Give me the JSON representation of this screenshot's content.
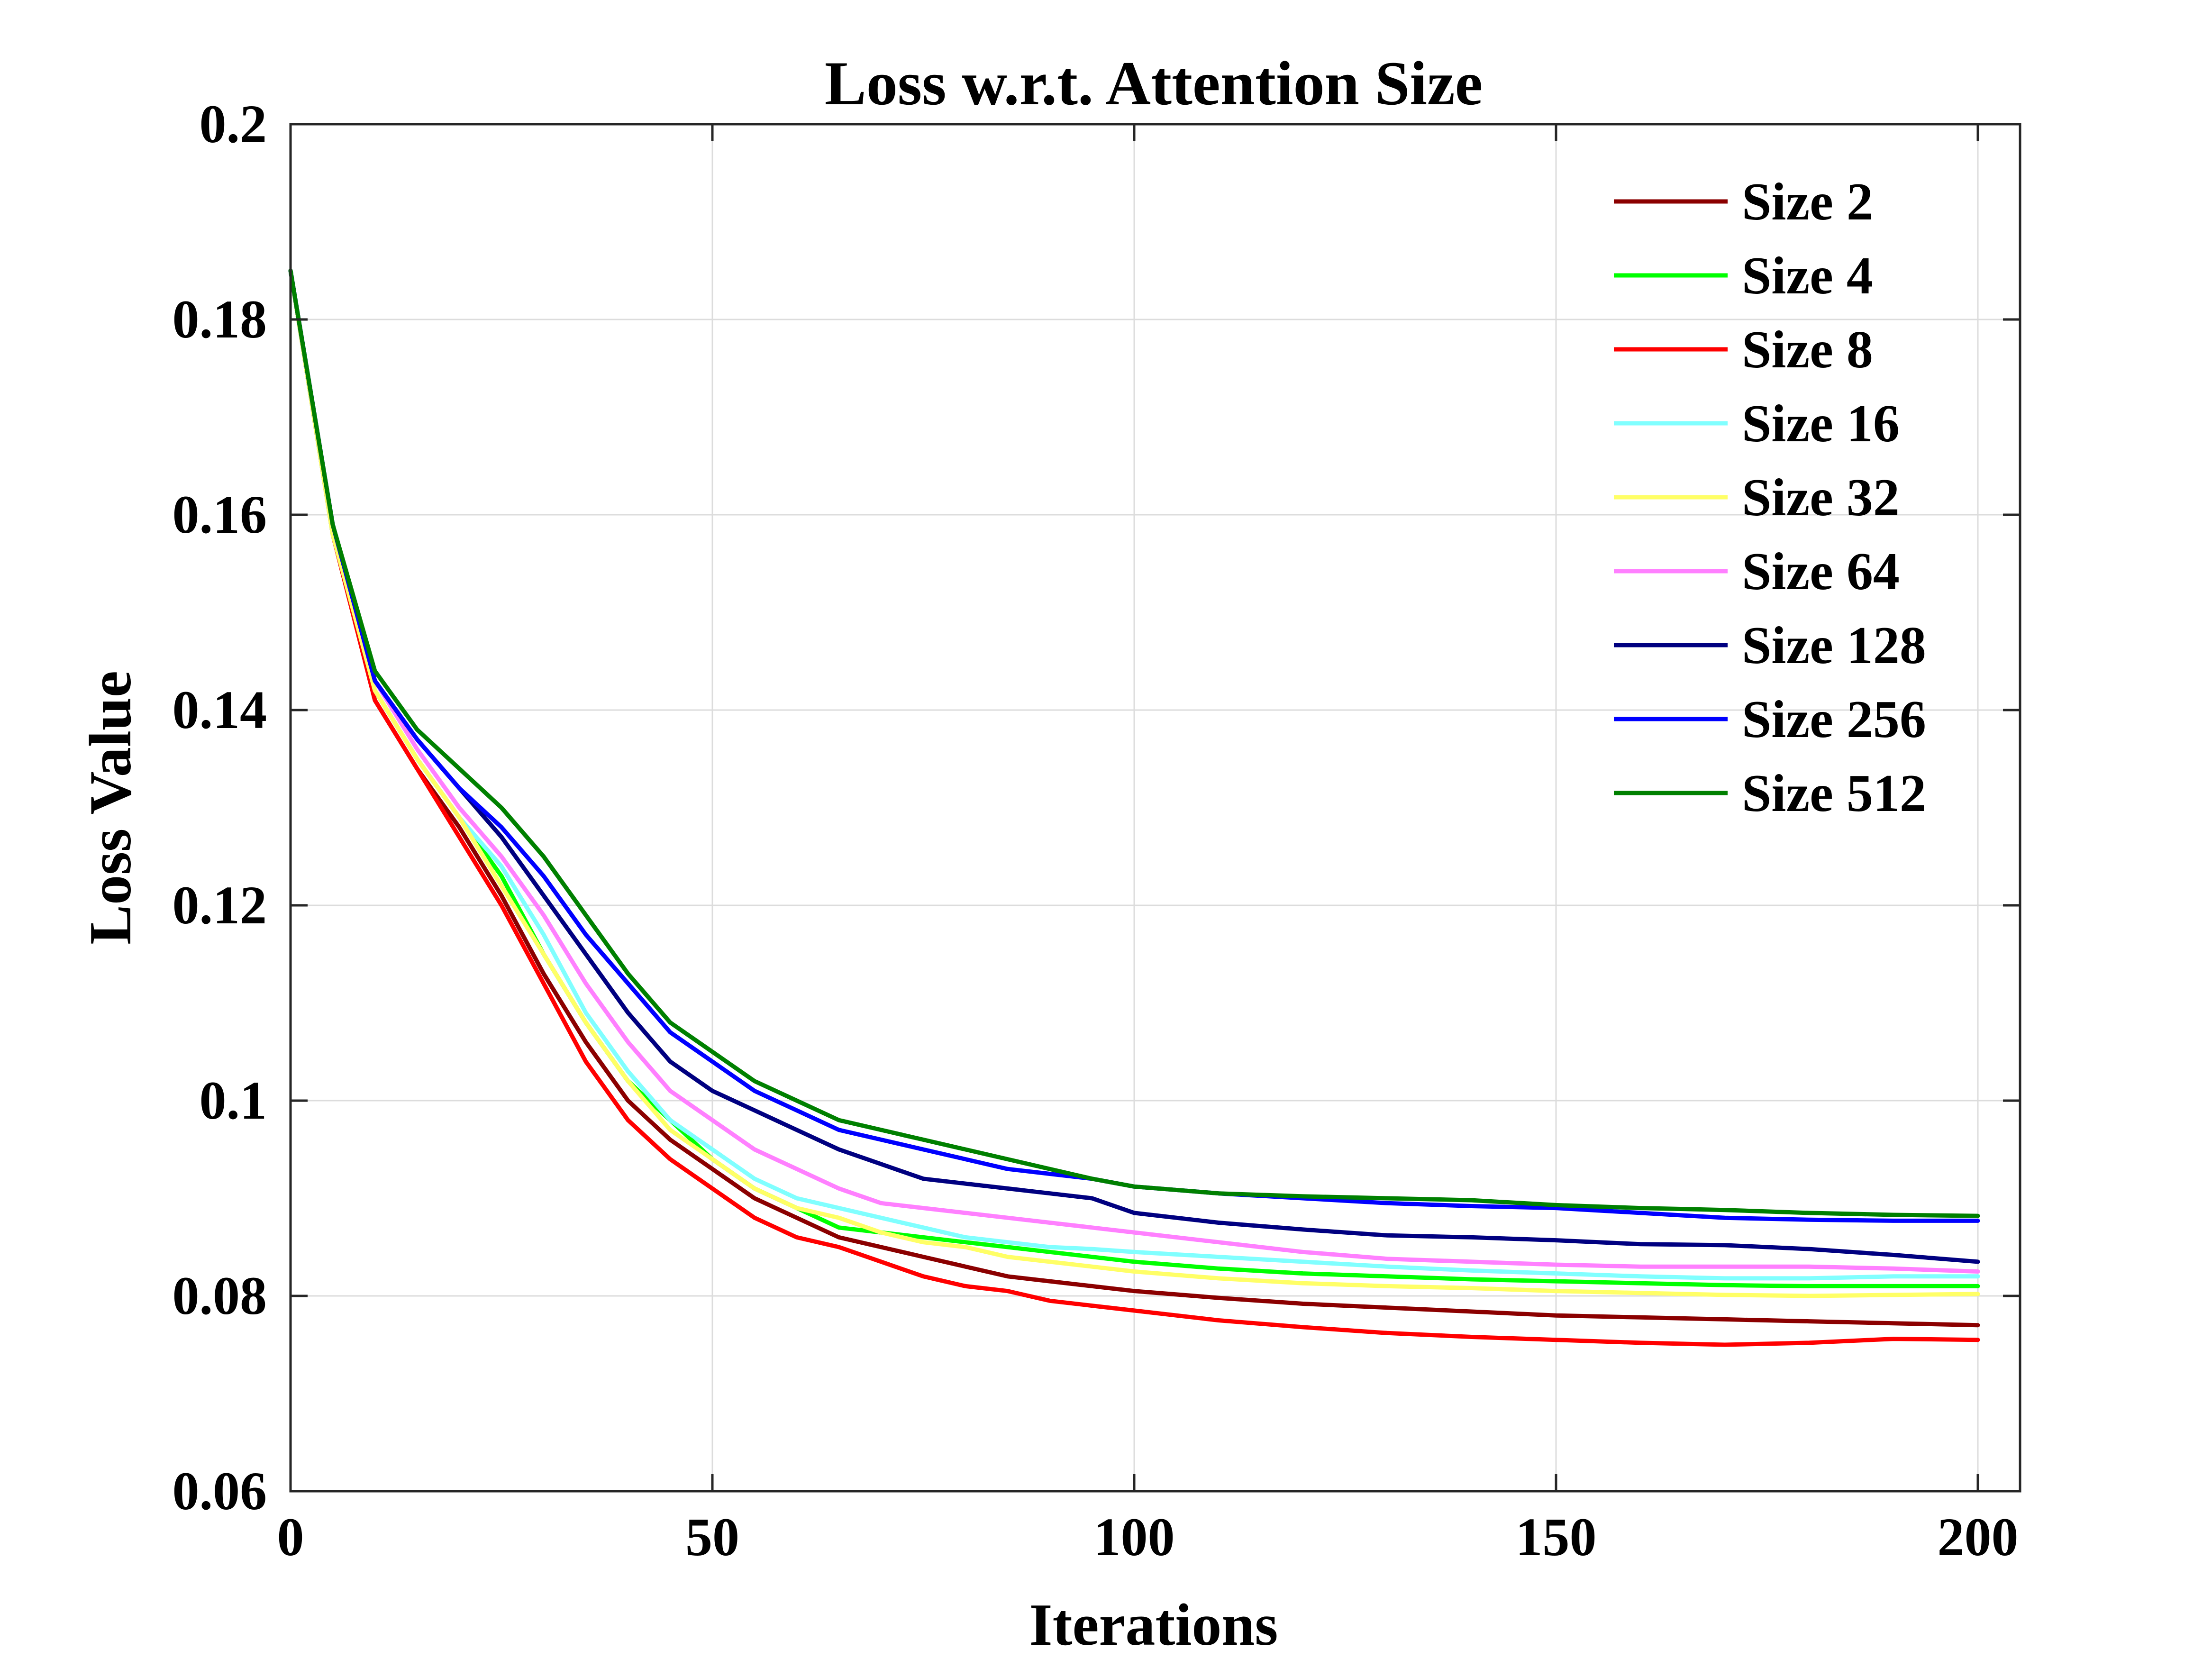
{
  "chart_data": {
    "type": "line",
    "title": "Loss w.r.t. Attention Size",
    "xlabel": "Iterations",
    "ylabel": "Loss Value",
    "xlim": [
      0,
      205
    ],
    "ylim": [
      0.06,
      0.2
    ],
    "xticks": [
      0,
      50,
      100,
      150,
      200
    ],
    "xtick_labels": [
      "0",
      "50",
      "100",
      "150",
      "200"
    ],
    "yticks": [
      0.06,
      0.08,
      0.1,
      0.12,
      0.14,
      0.16,
      0.18,
      0.2
    ],
    "ytick_labels": [
      "0.06",
      "0.08",
      "0.1",
      "0.12",
      "0.14",
      "0.16",
      "0.18",
      "0.2"
    ],
    "grid": true,
    "legend_position": "top-right",
    "x": [
      0,
      5,
      10,
      15,
      20,
      25,
      30,
      35,
      40,
      45,
      50,
      55,
      60,
      65,
      70,
      75,
      80,
      85,
      90,
      95,
      100,
      110,
      120,
      130,
      140,
      150,
      160,
      170,
      180,
      190,
      200
    ],
    "series": [
      {
        "name": "Size 2",
        "color": "#8b0000",
        "values": [
          0.185,
          0.158,
          0.141,
          0.134,
          0.128,
          0.121,
          0.113,
          0.106,
          0.1,
          0.096,
          0.093,
          0.09,
          0.088,
          0.086,
          0.085,
          0.084,
          0.083,
          0.082,
          0.0815,
          0.081,
          0.0805,
          0.0798,
          0.0792,
          0.0788,
          0.0784,
          0.078,
          0.0778,
          0.0776,
          0.0774,
          0.0772,
          0.077
        ]
      },
      {
        "name": "Size 4",
        "color": "#00ff00",
        "values": [
          0.185,
          0.158,
          0.142,
          0.135,
          0.129,
          0.123,
          0.115,
          0.108,
          0.102,
          0.098,
          0.094,
          0.091,
          0.089,
          0.087,
          0.0865,
          0.086,
          0.0855,
          0.085,
          0.0845,
          0.084,
          0.0835,
          0.0828,
          0.0823,
          0.082,
          0.0817,
          0.0815,
          0.0813,
          0.0811,
          0.081,
          0.081,
          0.081
        ]
      },
      {
        "name": "Size 8",
        "color": "#ff0000",
        "values": [
          0.185,
          0.158,
          0.141,
          0.134,
          0.127,
          0.12,
          0.112,
          0.104,
          0.098,
          0.094,
          0.091,
          0.088,
          0.086,
          0.085,
          0.0835,
          0.082,
          0.081,
          0.0805,
          0.0795,
          0.079,
          0.0785,
          0.0775,
          0.0768,
          0.0762,
          0.0758,
          0.0755,
          0.0752,
          0.075,
          0.0752,
          0.0756,
          0.0755
        ]
      },
      {
        "name": "Size 16",
        "color": "#80ffff",
        "values": [
          0.185,
          0.158,
          0.142,
          0.135,
          0.129,
          0.124,
          0.117,
          0.109,
          0.103,
          0.098,
          0.095,
          0.092,
          0.09,
          0.089,
          0.088,
          0.087,
          0.086,
          0.0855,
          0.085,
          0.0848,
          0.0845,
          0.084,
          0.0835,
          0.083,
          0.0826,
          0.0823,
          0.082,
          0.0818,
          0.0818,
          0.082,
          0.082
        ]
      },
      {
        "name": "Size 32",
        "color": "#ffff66",
        "values": [
          0.185,
          0.158,
          0.142,
          0.135,
          0.129,
          0.122,
          0.115,
          0.108,
          0.102,
          0.097,
          0.094,
          0.091,
          0.089,
          0.088,
          0.0865,
          0.0855,
          0.085,
          0.084,
          0.0835,
          0.083,
          0.0825,
          0.0818,
          0.0813,
          0.081,
          0.0808,
          0.0805,
          0.0803,
          0.0801,
          0.08,
          0.0801,
          0.0802
        ]
      },
      {
        "name": "Size 64",
        "color": "#ff80ff",
        "values": [
          0.185,
          0.159,
          0.143,
          0.136,
          0.13,
          0.125,
          0.119,
          0.112,
          0.106,
          0.101,
          0.098,
          0.095,
          0.093,
          0.091,
          0.0895,
          0.089,
          0.0885,
          0.088,
          0.0875,
          0.087,
          0.0865,
          0.0855,
          0.0845,
          0.0838,
          0.0835,
          0.0832,
          0.083,
          0.083,
          0.083,
          0.0828,
          0.0825
        ]
      },
      {
        "name": "Size 128",
        "color": "#000080",
        "values": [
          0.185,
          0.159,
          0.143,
          0.137,
          0.132,
          0.127,
          0.121,
          0.115,
          0.109,
          0.104,
          0.101,
          0.099,
          0.097,
          0.095,
          0.0935,
          0.092,
          0.0915,
          0.091,
          0.0905,
          0.09,
          0.0885,
          0.0875,
          0.0868,
          0.0862,
          0.086,
          0.0857,
          0.0853,
          0.0852,
          0.0848,
          0.0842,
          0.0835
        ]
      },
      {
        "name": "Size 256",
        "color": "#0000ff",
        "values": [
          0.185,
          0.159,
          0.143,
          0.137,
          0.132,
          0.128,
          0.123,
          0.117,
          0.112,
          0.107,
          0.104,
          0.101,
          0.099,
          0.097,
          0.096,
          0.095,
          0.094,
          0.093,
          0.0925,
          0.092,
          0.0912,
          0.0905,
          0.09,
          0.0895,
          0.0892,
          0.089,
          0.0885,
          0.088,
          0.0878,
          0.0877,
          0.0877
        ]
      },
      {
        "name": "Size 512",
        "color": "#008000",
        "values": [
          0.185,
          0.159,
          0.144,
          0.138,
          0.134,
          0.13,
          0.125,
          0.119,
          0.113,
          0.108,
          0.105,
          0.102,
          0.1,
          0.098,
          0.097,
          0.096,
          0.095,
          0.094,
          0.093,
          0.092,
          0.0912,
          0.0905,
          0.0902,
          0.09,
          0.0898,
          0.0893,
          0.089,
          0.0888,
          0.0885,
          0.0883,
          0.0882
        ]
      }
    ]
  }
}
